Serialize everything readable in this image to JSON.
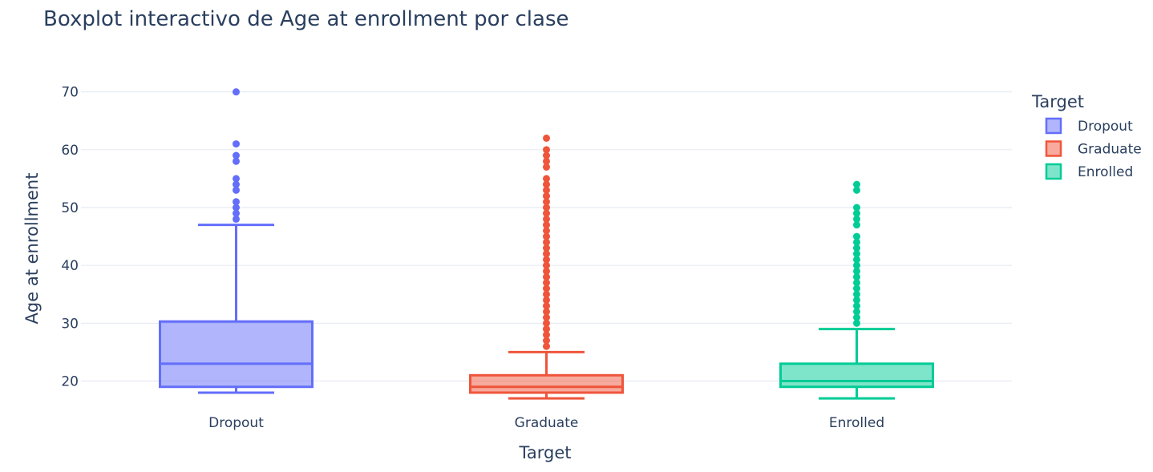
{
  "chart_data": {
    "type": "box",
    "title": "Boxplot interactivo de Age at enrollment por clase",
    "xlabel": "Target",
    "ylabel": "Age at enrollment",
    "categories": [
      "Dropout",
      "Graduate",
      "Enrolled"
    ],
    "ylim": [
      15.5,
      73
    ],
    "yticks": [
      20,
      30,
      40,
      50,
      60,
      70
    ],
    "grid": true,
    "legend": {
      "title": "Target",
      "placement": "right",
      "entries": [
        "Dropout",
        "Graduate",
        "Enrolled"
      ]
    },
    "series": [
      {
        "name": "Dropout",
        "color": "#636efa",
        "fill": "rgba(99,110,250,0.5)",
        "min": 18,
        "q1": 19,
        "median": 23,
        "q3": 30.3,
        "max": 47,
        "outliers": [
          48,
          49,
          50,
          51,
          53,
          54,
          55,
          58,
          59,
          61,
          70
        ]
      },
      {
        "name": "Graduate",
        "color": "#ef553b",
        "fill": "rgba(239,85,59,0.5)",
        "min": 17,
        "q1": 18,
        "median": 19,
        "q3": 21,
        "max": 25,
        "outliers": [
          26,
          27,
          28,
          29,
          30,
          31,
          32,
          33,
          34,
          35,
          36,
          37,
          38,
          39,
          40,
          41,
          42,
          43,
          44,
          45,
          46,
          47,
          48,
          49,
          50,
          51,
          52,
          53,
          54,
          55,
          57,
          58,
          59,
          60,
          62
        ]
      },
      {
        "name": "Enrolled",
        "color": "#00cc96",
        "fill": "rgba(0,204,150,0.5)",
        "min": 17,
        "q1": 19,
        "median": 20,
        "q3": 23,
        "max": 29,
        "outliers": [
          30,
          31,
          32,
          33,
          34,
          35,
          36,
          37,
          38,
          39,
          40,
          41,
          42,
          43,
          44,
          45,
          47,
          48,
          49,
          50,
          53,
          54
        ]
      }
    ]
  }
}
